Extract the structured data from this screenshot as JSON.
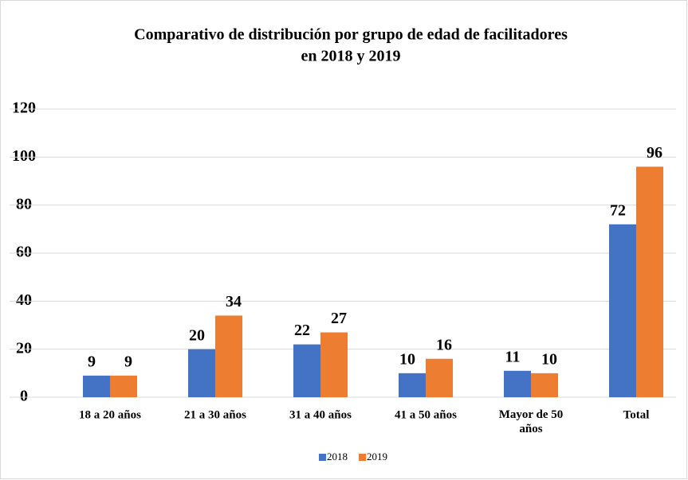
{
  "chart_data": {
    "type": "bar",
    "title": [
      "Comparativo de distribución por grupo de edad de facilitadores",
      "en 2018 y 2019"
    ],
    "categories": [
      "18 a 20 años",
      "21 a 30 años",
      "31 a 40 años",
      "41 a 50 años",
      "Mayor de 50 años",
      "Total"
    ],
    "series": [
      {
        "name": "2018",
        "color": "#4472c4",
        "values": [
          9,
          20,
          22,
          10,
          11,
          72
        ]
      },
      {
        "name": "2019",
        "color": "#ed7d31",
        "values": [
          9,
          34,
          27,
          16,
          10,
          96
        ]
      }
    ],
    "ylim": [
      0,
      120
    ],
    "yticks": [
      0,
      20,
      40,
      60,
      80,
      100,
      120
    ],
    "grid": true,
    "legend": "bottom"
  }
}
